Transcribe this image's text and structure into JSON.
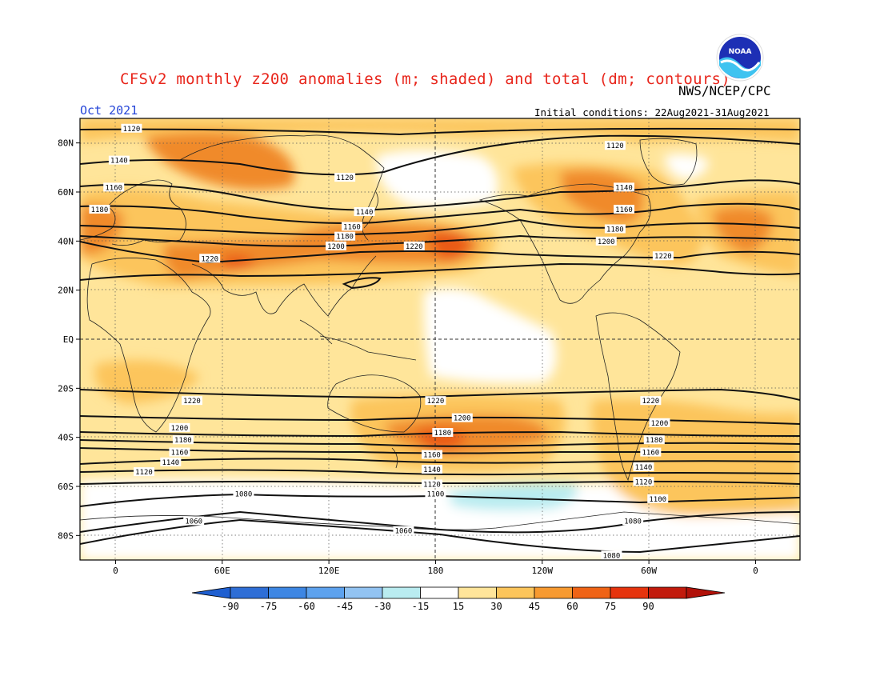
{
  "header": {
    "title": "CFSv2 monthly z200 anomalies (m; shaded) and total (dm; contours)",
    "agency": "NWS/NCEP/CPC",
    "month": "Oct 2021",
    "initial_conditions": "Initial conditions: 22Aug2021-31Aug2021",
    "logo_text": "NOAA"
  },
  "map": {
    "lat_labels": [
      "80N",
      "60N",
      "40N",
      "20N",
      "EQ",
      "20S",
      "40S",
      "60S",
      "80S"
    ],
    "lat_values": [
      80,
      60,
      40,
      20,
      0,
      -20,
      -40,
      -60,
      -80
    ],
    "lon_labels": [
      "0",
      "60E",
      "120E",
      "180",
      "120W",
      "60W",
      "0"
    ],
    "lon_values": [
      0,
      60,
      120,
      180,
      240,
      300,
      360
    ],
    "lon_range": [
      -20,
      385
    ],
    "lat_range": [
      -90,
      90
    ],
    "contour_labels": [
      {
        "text": "1120",
        "lon": 9,
        "lat": 86
      },
      {
        "text": "1140",
        "lon": 2,
        "lat": 73
      },
      {
        "text": "1160",
        "lon": -1,
        "lat": 62
      },
      {
        "text": "1180",
        "lon": -9,
        "lat": 53
      },
      {
        "text": "1120",
        "lon": 129,
        "lat": 66
      },
      {
        "text": "1140",
        "lon": 140,
        "lat": 52
      },
      {
        "text": "1160",
        "lon": 133,
        "lat": 46
      },
      {
        "text": "1180",
        "lon": 129,
        "lat": 42
      },
      {
        "text": "1200",
        "lon": 124,
        "lat": 38
      },
      {
        "text": "1220",
        "lon": 53,
        "lat": 33
      },
      {
        "text": "1220",
        "lon": 168,
        "lat": 38
      },
      {
        "text": "1120",
        "lon": 281,
        "lat": 79
      },
      {
        "text": "1140",
        "lon": 286,
        "lat": 62
      },
      {
        "text": "1160",
        "lon": 286,
        "lat": 53
      },
      {
        "text": "1180",
        "lon": 281,
        "lat": 45
      },
      {
        "text": "1200",
        "lon": 276,
        "lat": 40
      },
      {
        "text": "1220",
        "lon": 308,
        "lat": 34
      },
      {
        "text": "1220",
        "lon": 43,
        "lat": -25
      },
      {
        "text": "1220",
        "lon": 180,
        "lat": -25
      },
      {
        "text": "1220",
        "lon": 301,
        "lat": -25
      },
      {
        "text": "1200",
        "lon": 36,
        "lat": -36
      },
      {
        "text": "1200",
        "lon": 195,
        "lat": -32
      },
      {
        "text": "1200",
        "lon": 306,
        "lat": -34
      },
      {
        "text": "1180",
        "lon": 38,
        "lat": -41
      },
      {
        "text": "1180",
        "lon": 184,
        "lat": -38
      },
      {
        "text": "1180",
        "lon": 303,
        "lat": -41
      },
      {
        "text": "1160",
        "lon": 36,
        "lat": -46
      },
      {
        "text": "1160",
        "lon": 178,
        "lat": -47
      },
      {
        "text": "1160",
        "lon": 301,
        "lat": -46
      },
      {
        "text": "1140",
        "lon": 31,
        "lat": -50
      },
      {
        "text": "1140",
        "lon": 178,
        "lat": -53
      },
      {
        "text": "1140",
        "lon": 297,
        "lat": -52
      },
      {
        "text": "1120",
        "lon": 16,
        "lat": -54
      },
      {
        "text": "1120",
        "lon": 178,
        "lat": -59
      },
      {
        "text": "1120",
        "lon": 297,
        "lat": -58
      },
      {
        "text": "1100",
        "lon": 180,
        "lat": -63
      },
      {
        "text": "1100",
        "lon": 305,
        "lat": -65
      },
      {
        "text": "1080",
        "lon": 72,
        "lat": -63
      },
      {
        "text": "1080",
        "lon": 291,
        "lat": -74
      },
      {
        "text": "1060",
        "lon": 44,
        "lat": -74
      },
      {
        "text": "1060",
        "lon": 162,
        "lat": -78
      },
      {
        "text": "1080",
        "lon": 279,
        "lat": -88
      }
    ]
  },
  "colorbar": {
    "labels": [
      "-90",
      "-75",
      "-60",
      "-45",
      "-30",
      "-15",
      "15",
      "30",
      "45",
      "60",
      "75",
      "90"
    ],
    "colors": [
      "#2e6ed6",
      "#3d86e3",
      "#5da2ee",
      "#92c3f2",
      "#b9ecf0",
      "#ffffff",
      "#ffe59a",
      "#fcc55b",
      "#f79a30",
      "#ef6315",
      "#e6330d",
      "#c21a0c"
    ],
    "left_arrow_color": "#1f5fd0",
    "right_arrow_color": "#b11109"
  }
}
